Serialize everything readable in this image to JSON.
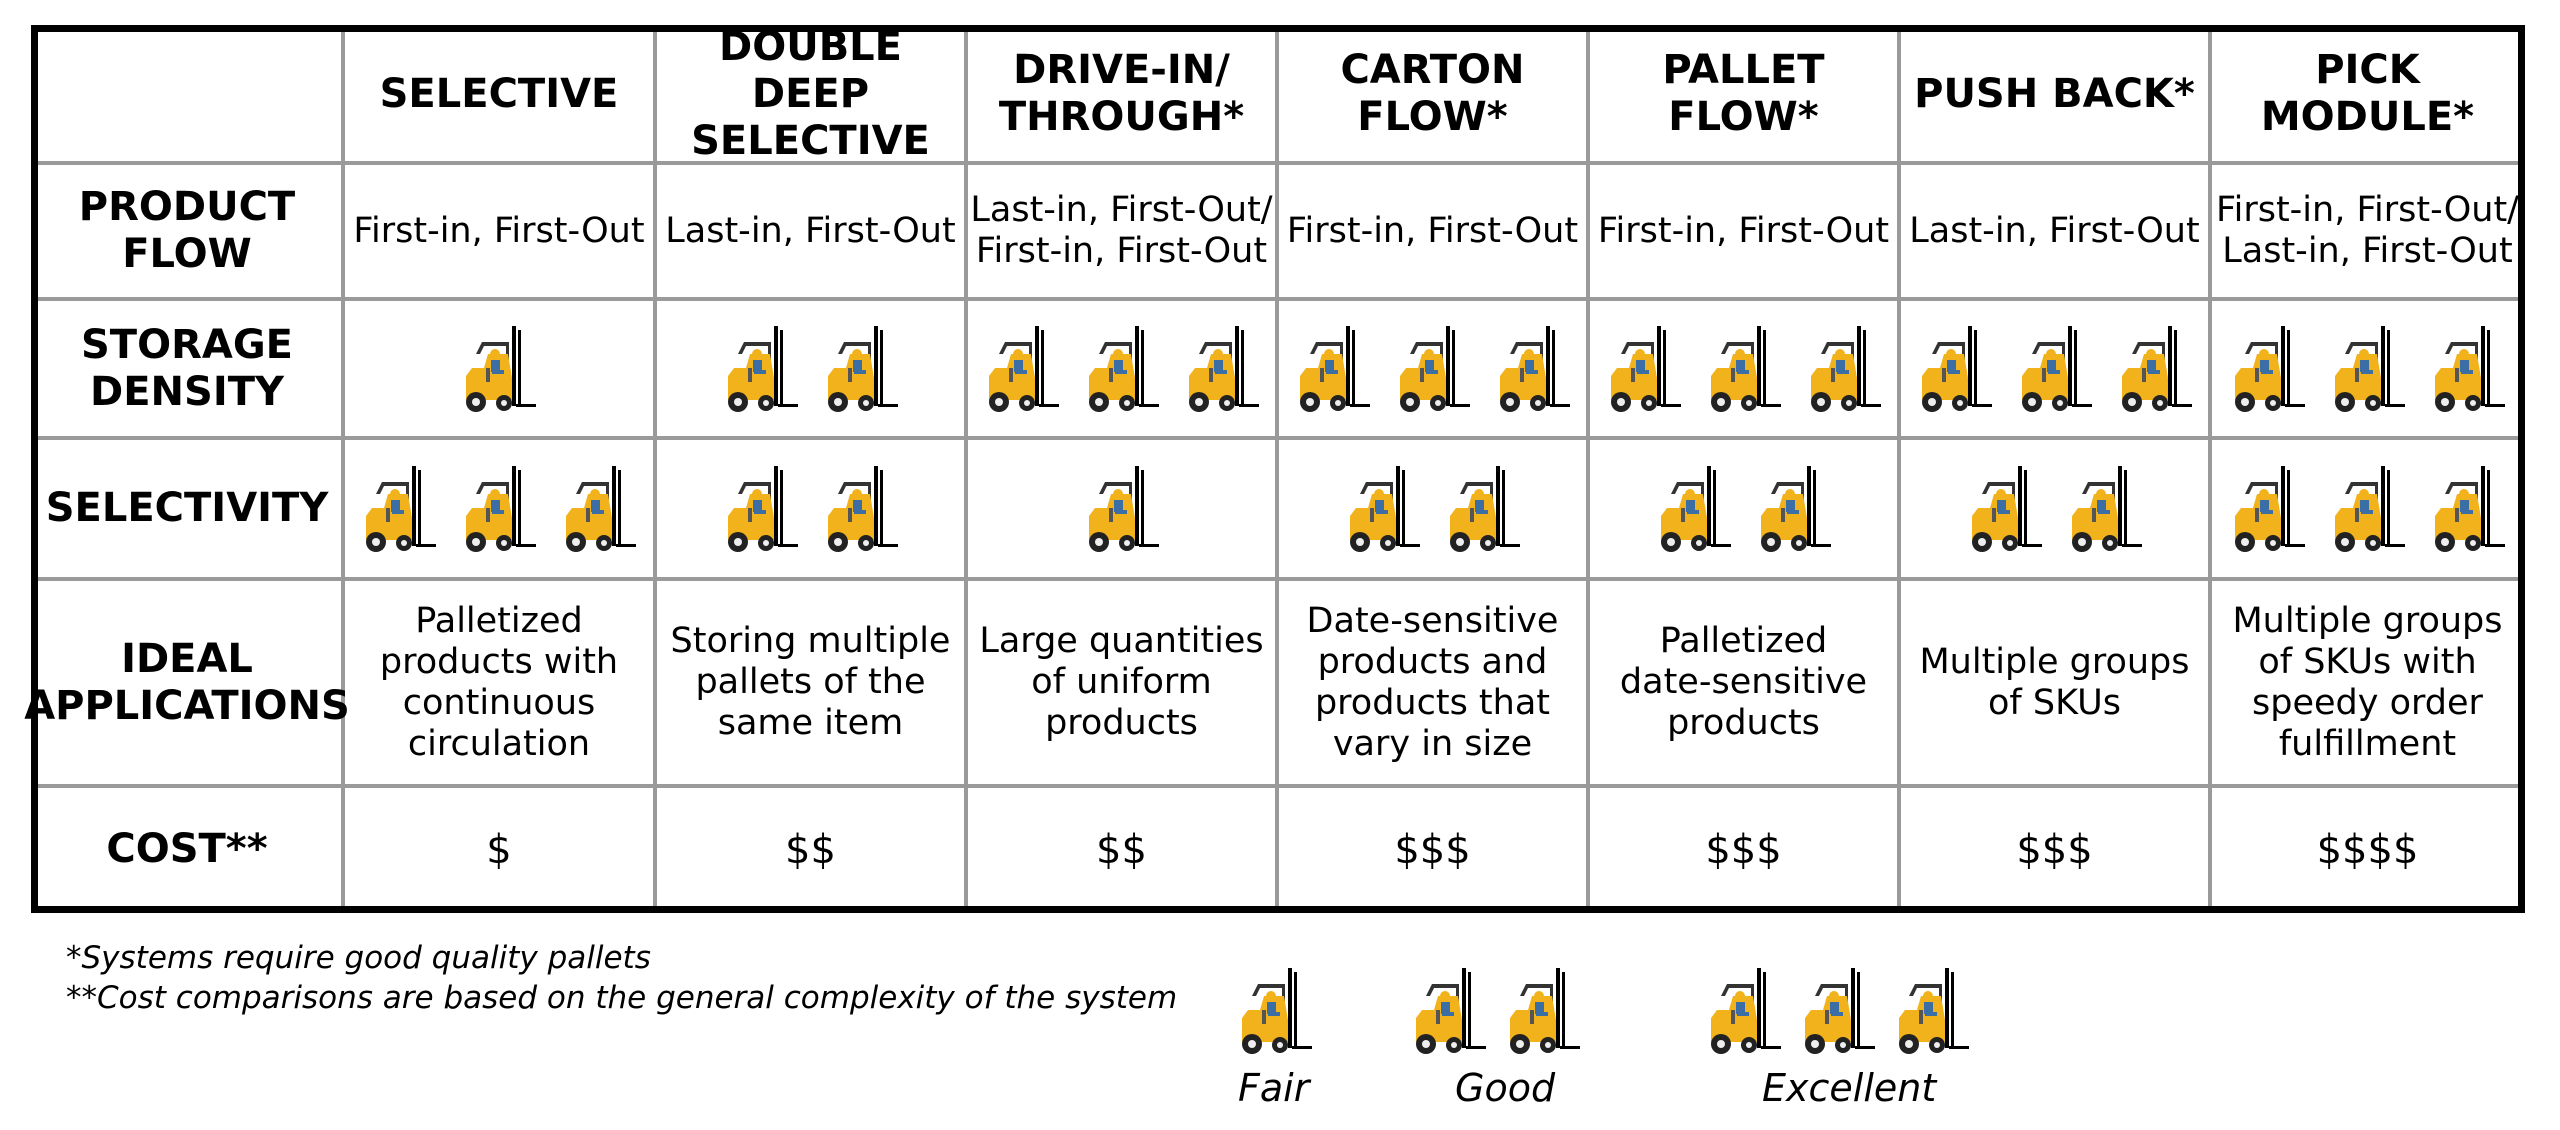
{
  "columns": [
    "SELECTIVE",
    "DOUBLE DEEP SELECTIVE",
    "DRIVE-IN/ THROUGH*",
    "CARTON FLOW*",
    "PALLET FLOW*",
    "PUSH BACK*",
    "PICK MODULE*"
  ],
  "column_lines": [
    [
      "SELECTIVE"
    ],
    [
      "DOUBLE DEEP",
      "SELECTIVE"
    ],
    [
      "DRIVE-IN/",
      "THROUGH*"
    ],
    [
      "CARTON",
      "FLOW*"
    ],
    [
      "PALLET",
      "FLOW*"
    ],
    [
      "PUSH BACK*"
    ],
    [
      "PICK",
      "MODULE*"
    ]
  ],
  "rows": {
    "product_flow": {
      "label": [
        "PRODUCT",
        "FLOW"
      ],
      "values": [
        [
          "First-in, First-Out"
        ],
        [
          "Last-in, First-Out"
        ],
        [
          "Last-in, First-Out/",
          "First-in, First-Out"
        ],
        [
          "First-in, First-Out"
        ],
        [
          "First-in, First-Out"
        ],
        [
          "Last-in, First-Out"
        ],
        [
          "First-in, First-Out/",
          "Last-in, First-Out"
        ]
      ]
    },
    "storage_density": {
      "label": [
        "STORAGE",
        "DENSITY"
      ],
      "ratings": [
        1,
        2,
        3,
        3,
        3,
        3,
        3
      ]
    },
    "selectivity": {
      "label": [
        "SELECTIVITY"
      ],
      "ratings": [
        3,
        2,
        1,
        2,
        2,
        2,
        3
      ]
    },
    "ideal_applications": {
      "label": [
        "IDEAL",
        "APPLICATIONS"
      ],
      "values": [
        [
          "Palletized",
          "products with",
          "continuous",
          "circulation"
        ],
        [
          "Storing multiple",
          "pallets of the",
          "same item"
        ],
        [
          "Large quantities",
          "of uniform",
          "products"
        ],
        [
          "Date-sensitive",
          "products and",
          "products that",
          "vary in size"
        ],
        [
          "Palletized",
          "date-sensitive",
          "products"
        ],
        [
          "Multiple groups",
          "of SKUs"
        ],
        [
          "Multiple groups",
          "of SKUs with",
          "speedy order",
          "fulfillment"
        ]
      ]
    },
    "cost": {
      "label": [
        "COST**"
      ],
      "values": [
        "$",
        "$$",
        "$$",
        "$$$",
        "$$$",
        "$$$",
        "$$$$"
      ]
    }
  },
  "footnotes": [
    "*Systems require good quality pallets",
    "**Cost comparisons are based on the general complexity of the system"
  ],
  "legend": [
    {
      "label": "Fair",
      "count": 1
    },
    {
      "label": "Good",
      "count": 2
    },
    {
      "label": "Excellent",
      "count": 3
    }
  ],
  "colors": {
    "forklift_body": "#f2b21b",
    "grid": "#9a9a9a",
    "border": "#000000"
  },
  "icon": "forklift-icon"
}
